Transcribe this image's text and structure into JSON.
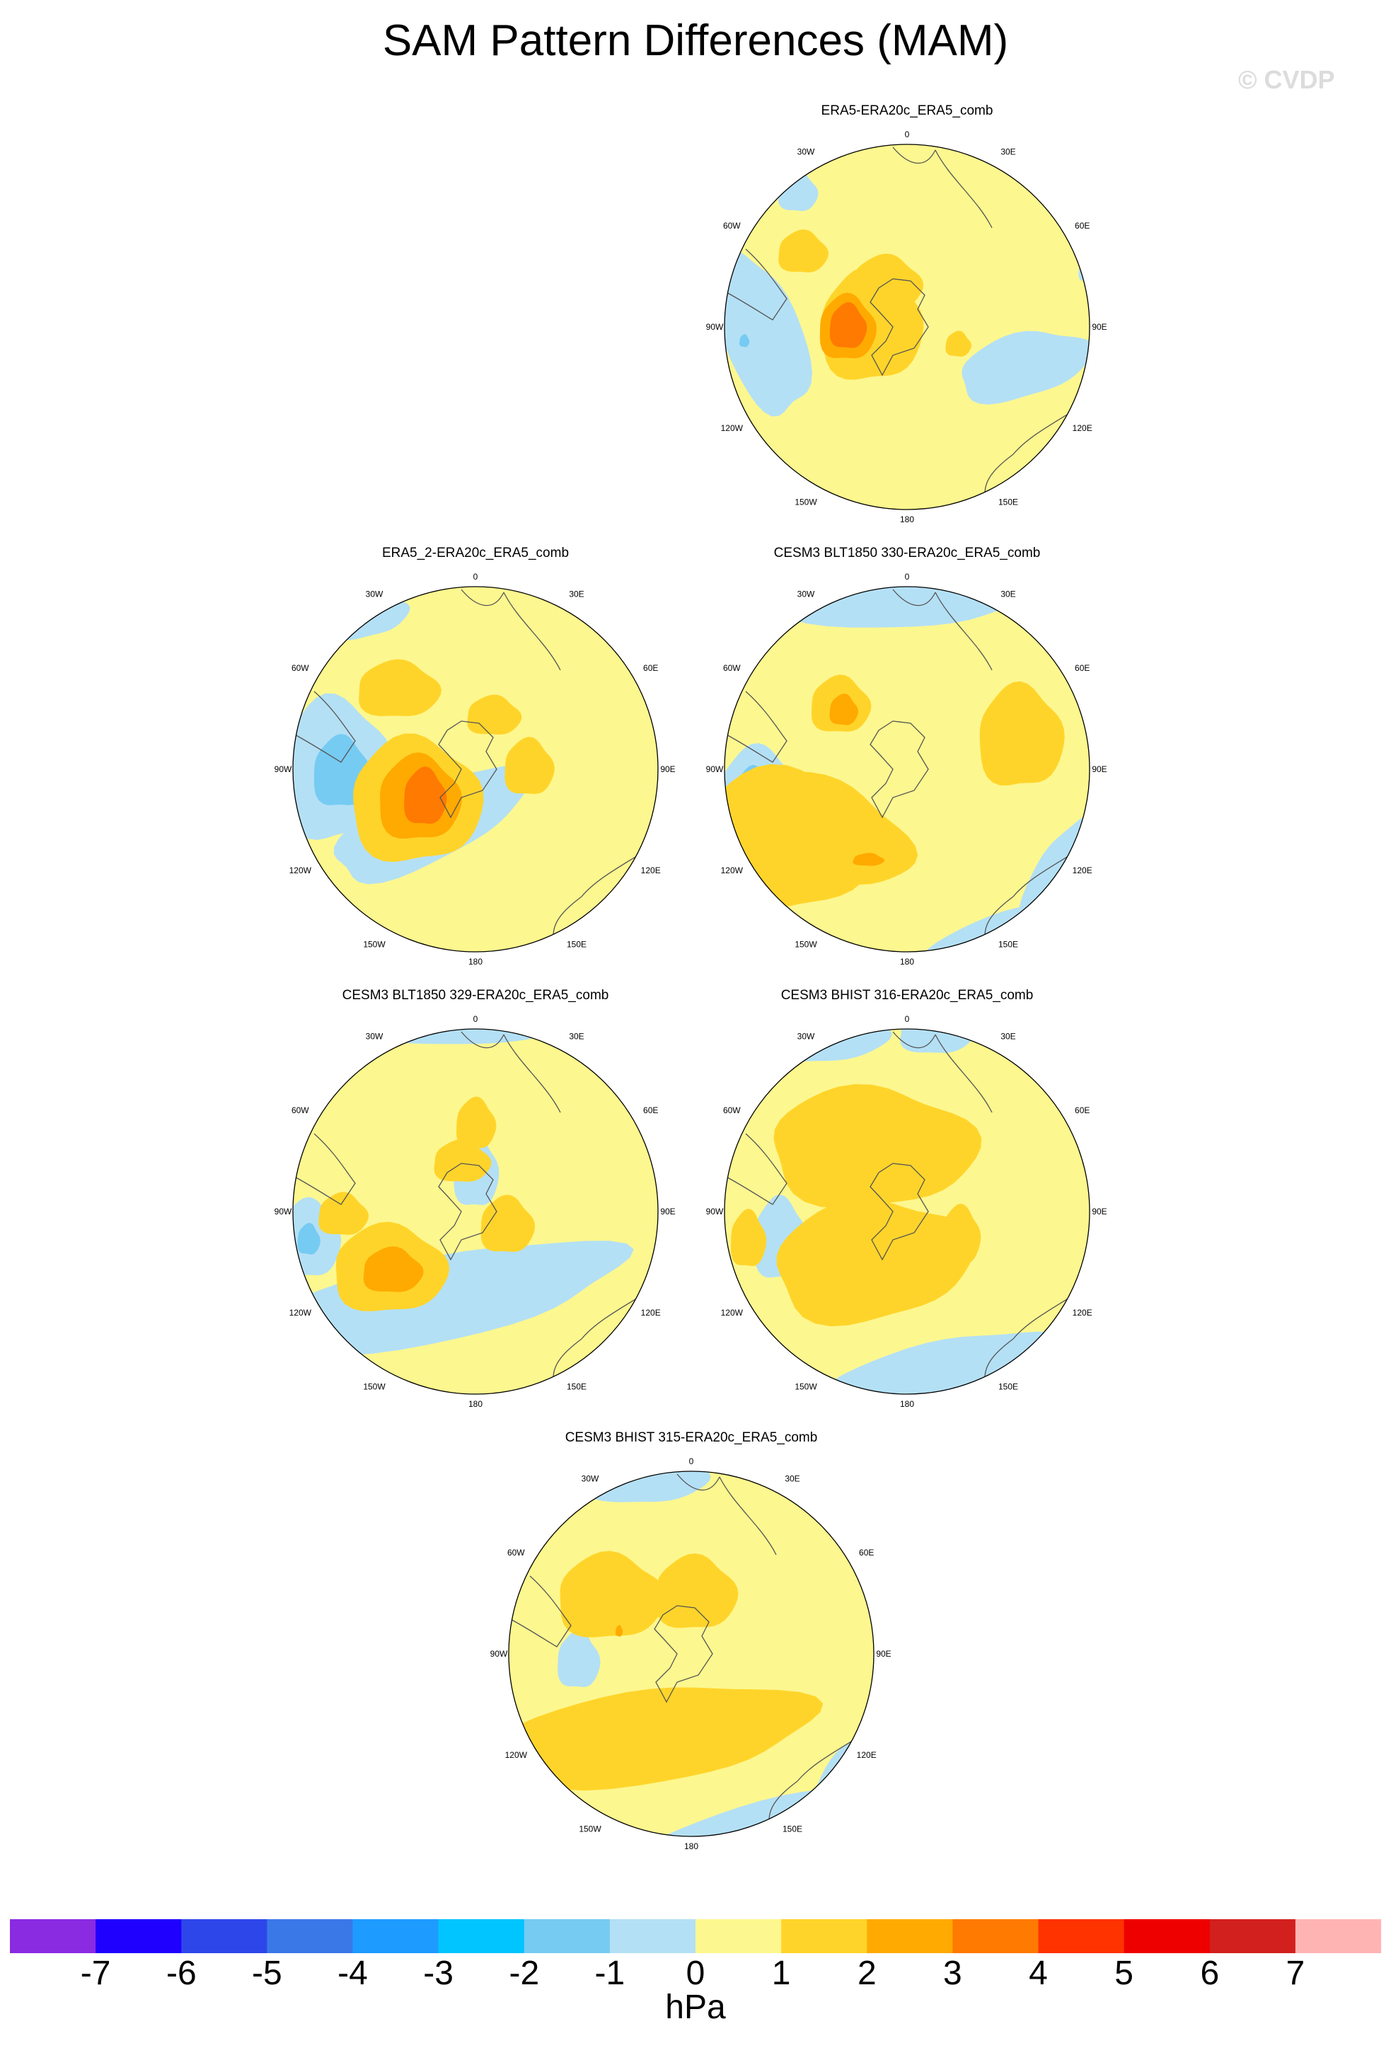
{
  "title": "SAM Pattern Differences (MAM)",
  "watermark": "© CVDP",
  "lon_labels": [
    "0",
    "30E",
    "60E",
    "90E",
    "120E",
    "150E",
    "180",
    "150W",
    "120W",
    "90W",
    "60W",
    "30W"
  ],
  "panels": [
    {
      "title": "ERA5-ERA20c_ERA5_comb"
    },
    {
      "title": "ERA5_2-ERA20c_ERA5_comb"
    },
    {
      "title": "CESM3 BLT1850 330-ERA20c_ERA5_comb"
    },
    {
      "title": "CESM3 BLT1850 329-ERA20c_ERA5_comb"
    },
    {
      "title": "CESM3 BHIST 316-ERA20c_ERA5_comb"
    },
    {
      "title": "CESM3 BHIST 315-ERA20c_ERA5_comb"
    }
  ],
  "colorbar": {
    "colors": [
      "#8a2be2",
      "#1f00ff",
      "#2d46ea",
      "#3a78e8",
      "#1e9bff",
      "#00c5ff",
      "#76cbf2",
      "#b4e0f5",
      "#fdf78f",
      "#ffd42a",
      "#ffaa00",
      "#ff7a00",
      "#ff3300",
      "#ee0000",
      "#d2201e",
      "#ffb4b4"
    ],
    "labels": [
      "-7",
      "-6",
      "-5",
      "-4",
      "-3",
      "-2",
      "-1",
      "0",
      "1",
      "2",
      "3",
      "4",
      "5",
      "6",
      "7"
    ],
    "units": "hPa"
  }
}
